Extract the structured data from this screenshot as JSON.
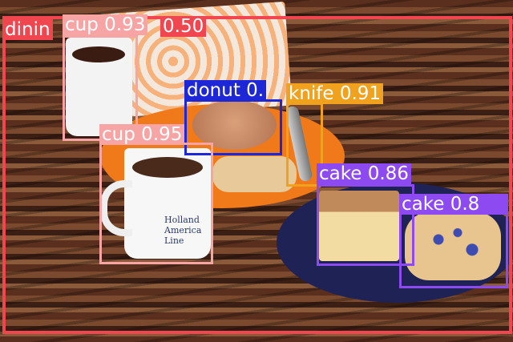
{
  "image": {
    "print_text": "Holland America Line"
  },
  "detections": [
    {
      "label": "dining table",
      "shown_text": "dinin",
      "score_text": "0.50",
      "color": "#f04650"
    },
    {
      "label": "cup",
      "shown_text": "cup 0.93",
      "color": "#f7a4a4"
    },
    {
      "label": "donut",
      "shown_text": "donut 0.",
      "color": "#1e27d6"
    },
    {
      "label": "knife",
      "shown_text": "knife 0.91",
      "color": "#f0a21e"
    },
    {
      "label": "cup",
      "shown_text": "cup 0.95",
      "color": "#f7a4a4"
    },
    {
      "label": "cake",
      "shown_text": "cake 0.86",
      "color": "#8c4af0"
    },
    {
      "label": "cake",
      "shown_text": "cake 0.8",
      "color": "#8c4af0"
    }
  ]
}
